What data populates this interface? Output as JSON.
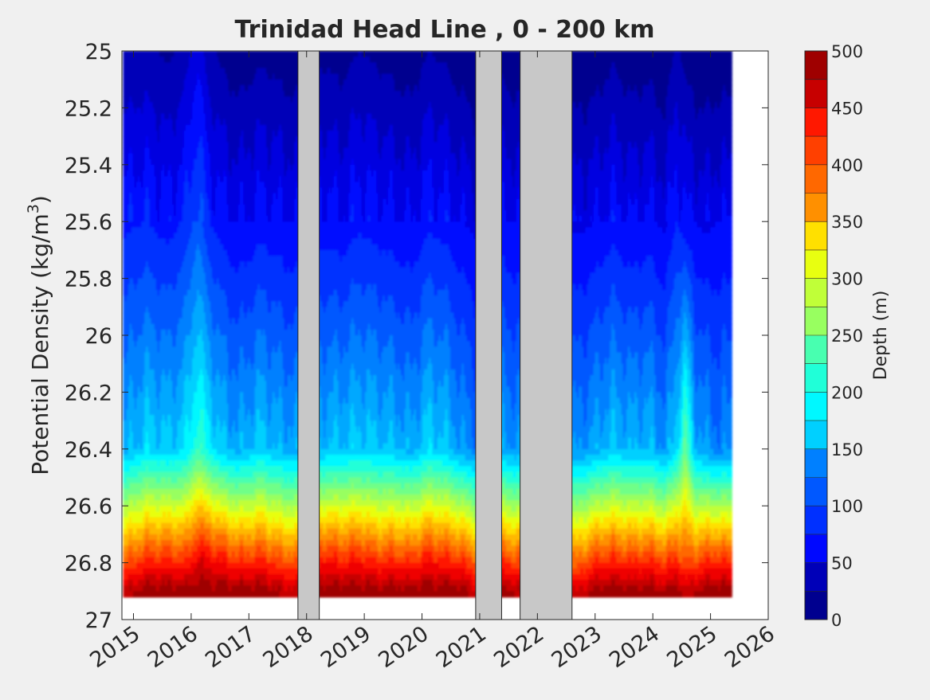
{
  "chart_data": {
    "type": "heatmap",
    "subtype": "filled contour",
    "title": "Trinidad Head Line , 0 - 200 km",
    "xlabel": "",
    "ylabel": "Potential Density (kg/m",
    "ylabel_superscript": "3",
    "ylabel_suffix": ")",
    "xlim": [
      2014.8,
      2026.0
    ],
    "ylim": [
      25,
      27
    ],
    "y_reversed": true,
    "x_ticks": [
      2015,
      2016,
      2017,
      2018,
      2019,
      2020,
      2021,
      2022,
      2023,
      2024,
      2025,
      2026
    ],
    "x_tick_labels": [
      "2015",
      "2016",
      "2017",
      "2018",
      "2019",
      "2020",
      "2021",
      "2022",
      "2023",
      "2024",
      "2025",
      "2026"
    ],
    "y_ticks": [
      25,
      25.2,
      25.4,
      25.6,
      25.8,
      26,
      26.2,
      26.4,
      26.6,
      26.8,
      27
    ],
    "y_tick_labels": [
      "25",
      "25.2",
      "25.4",
      "25.6",
      "25.8",
      "26",
      "26.2",
      "26.4",
      "26.6",
      "26.8",
      "27"
    ],
    "colorbar": {
      "label": "Depth (m)",
      "min": 0,
      "max": 500,
      "levels": [
        0,
        25,
        50,
        75,
        100,
        125,
        150,
        175,
        200,
        225,
        250,
        275,
        300,
        325,
        350,
        375,
        400,
        425,
        450,
        475,
        500
      ],
      "tick_values": [
        0,
        50,
        100,
        150,
        200,
        250,
        300,
        350,
        400,
        450,
        500
      ],
      "tick_labels": [
        "0",
        "50",
        "100",
        "150",
        "200",
        "250",
        "300",
        "350",
        "400",
        "450",
        "500"
      ],
      "colors": [
        "#00008f",
        "#0000b8",
        "#0000e0",
        "#0008ff",
        "#0030ff",
        "#0058ff",
        "#0080ff",
        "#00a8ff",
        "#00d0ff",
        "#00f8ff",
        "#20ffd8",
        "#48ffb0",
        "#70ff88",
        "#98ff60",
        "#c0ff38",
        "#e8ff10",
        "#ffe000",
        "#ffb800",
        "#ff9000",
        "#ff6800",
        "#ff4000",
        "#ff1800",
        "#ef0000",
        "#c70000",
        "#9f0000"
      ]
    },
    "no_data_periods": [
      [
        2017.85,
        2018.22
      ],
      [
        2020.93,
        2021.38
      ],
      [
        2021.7,
        2022.6
      ]
    ],
    "no_data_color": "#c8c8c8",
    "data_end": 2025.35,
    "depth_profile": {
      "description": "Approximate depth (m) of each isopycnal at sampled times; higher = deeper",
      "times": [
        2014.85,
        2015.2,
        2015.6,
        2015.9,
        2016.1,
        2016.3,
        2016.5,
        2016.8,
        2017.2,
        2017.5,
        2017.8,
        2018.3,
        2018.6,
        2018.9,
        2019.2,
        2019.5,
        2019.8,
        2020.1,
        2020.4,
        2020.7,
        2020.9,
        2021.4,
        2021.6,
        2022.65,
        2023.0,
        2023.3,
        2023.6,
        2023.9,
        2024.2,
        2024.4,
        2024.55,
        2024.7,
        2024.9,
        2025.1,
        2025.3
      ],
      "d_at_25_6": [
        75,
        80,
        70,
        85,
        110,
        80,
        70,
        60,
        70,
        65,
        60,
        70,
        65,
        75,
        70,
        65,
        60,
        75,
        70,
        60,
        55,
        65,
        60,
        55,
        60,
        70,
        60,
        65,
        55,
        80,
        65,
        60,
        55,
        60,
        60
      ],
      "d_at_26_4": [
        150,
        175,
        165,
        180,
        220,
        190,
        165,
        150,
        170,
        155,
        150,
        160,
        165,
        170,
        165,
        160,
        150,
        175,
        165,
        140,
        130,
        150,
        140,
        135,
        150,
        165,
        155,
        160,
        140,
        175,
        245,
        160,
        140,
        130,
        135
      ],
      "d_at_26_8": [
        400,
        425,
        430,
        420,
        460,
        450,
        440,
        420,
        430,
        410,
        400,
        440,
        430,
        440,
        420,
        425,
        420,
        440,
        430,
        420,
        400,
        420,
        410,
        390,
        420,
        430,
        420,
        425,
        410,
        430,
        400,
        410,
        420,
        430,
        420
      ]
    }
  }
}
